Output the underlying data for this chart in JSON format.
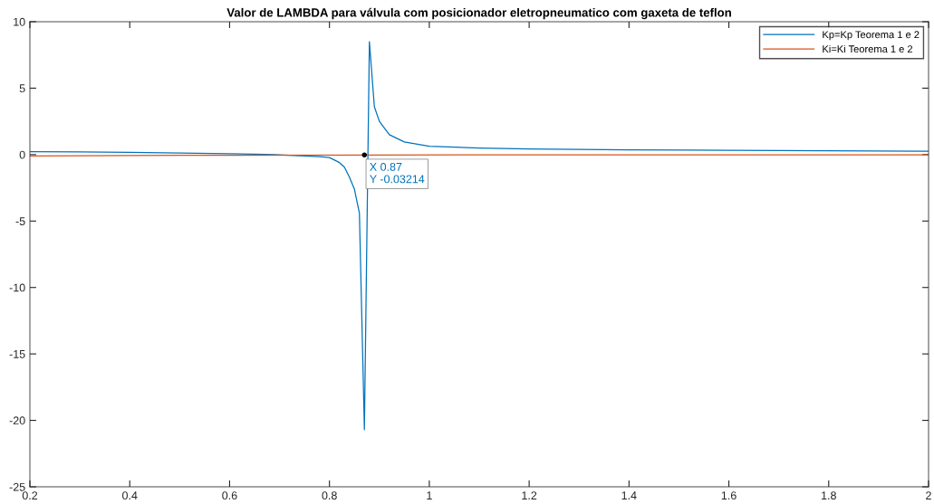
{
  "chart_data": {
    "type": "line",
    "title": "Valor de LAMBDA para válvula com posicionador eletropneumatico com gaxeta de teflon",
    "xlim": [
      0.2,
      2
    ],
    "xticks": [
      0.2,
      0.4,
      0.6,
      0.8,
      1,
      1.2,
      1.4,
      1.6,
      1.8,
      2
    ],
    "ylim": [
      -25,
      10
    ],
    "yticks": [
      -25,
      -20,
      -15,
      -10,
      -5,
      0,
      5,
      10
    ],
    "grid": false,
    "legend": "top right",
    "marker": "none",
    "line_style": "solid",
    "series": [
      {
        "name": "Kp=Kp Teorema 1 e 2",
        "color": "#0072bd",
        "x": [
          0.2,
          0.3,
          0.4,
          0.5,
          0.6,
          0.65,
          0.69,
          0.75,
          0.78,
          0.8,
          0.82,
          0.83,
          0.84,
          0.85,
          0.86,
          0.87,
          0.88,
          0.89,
          0.9,
          0.92,
          0.95,
          1.0,
          1.1,
          1.2,
          1.4,
          1.6,
          1.8,
          2.0
        ],
        "values": [
          0.22,
          0.2,
          0.17,
          0.12,
          0.06,
          0.03,
          0.0,
          -0.1,
          -0.16,
          -0.22,
          -0.6,
          -0.95,
          -1.7,
          -2.6,
          -4.4,
          -20.7,
          8.5,
          3.6,
          2.5,
          1.5,
          0.95,
          0.63,
          0.5,
          0.43,
          0.36,
          0.32,
          0.29,
          0.26
        ]
      },
      {
        "name": "Ki=Ki Teorema 1 e 2",
        "color": "#d95319",
        "x": [
          0.2,
          0.5,
          0.87,
          1.2,
          2.0
        ],
        "values": [
          -0.1,
          -0.06,
          -0.03214,
          -0.02,
          -0.01
        ]
      }
    ],
    "annotations": [
      {
        "text": "X 0.87\nY -0.03214",
        "x": 0.87,
        "y": -0.03214
      }
    ]
  }
}
